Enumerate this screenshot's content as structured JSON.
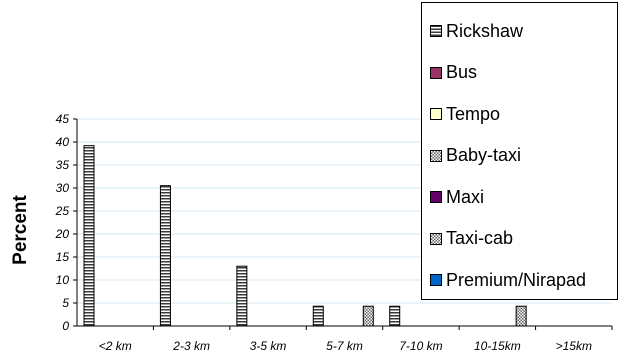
{
  "chart_data": {
    "type": "bar",
    "ylabel": "Percent",
    "xlabel": "",
    "ylim": [
      0,
      45
    ],
    "yticks": [
      0,
      5,
      10,
      15,
      20,
      25,
      30,
      35,
      40,
      45
    ],
    "grid": true,
    "legend_position": "right",
    "categories": [
      "<2 km",
      "2-3 km",
      "3-5 km",
      "5-7 km",
      "7-10 km",
      "10-15km",
      ">15km"
    ],
    "series": [
      {
        "name": "Rickshaw",
        "values": [
          39.2,
          30.5,
          13.0,
          4.3,
          4.3,
          0,
          0
        ],
        "color": "#5a5a5a",
        "pattern": "hstripe"
      },
      {
        "name": "Bus",
        "values": [
          0,
          0,
          0,
          0,
          0,
          0,
          0
        ],
        "color": "#993366",
        "pattern": "solid"
      },
      {
        "name": "Tempo",
        "values": [
          0,
          0,
          0,
          0,
          0,
          0,
          0
        ],
        "color": "#ffffcc",
        "pattern": "solid"
      },
      {
        "name": "Baby-taxi",
        "values": [
          0,
          0,
          0,
          0,
          0,
          0,
          0
        ],
        "color": "#a0a0a0",
        "pattern": "dots"
      },
      {
        "name": "Maxi",
        "values": [
          0,
          0,
          0,
          0,
          0,
          0,
          0
        ],
        "color": "#660066",
        "pattern": "solid"
      },
      {
        "name": "Taxi-cab",
        "values": [
          0,
          0,
          0,
          4.3,
          0,
          4.3,
          0
        ],
        "color": "#cccccc",
        "pattern": "dots"
      },
      {
        "name": "Premium/Nirapad",
        "values": [
          0,
          0,
          0,
          0,
          0,
          0,
          0
        ],
        "color": "#0066cc",
        "pattern": "solid"
      }
    ]
  }
}
